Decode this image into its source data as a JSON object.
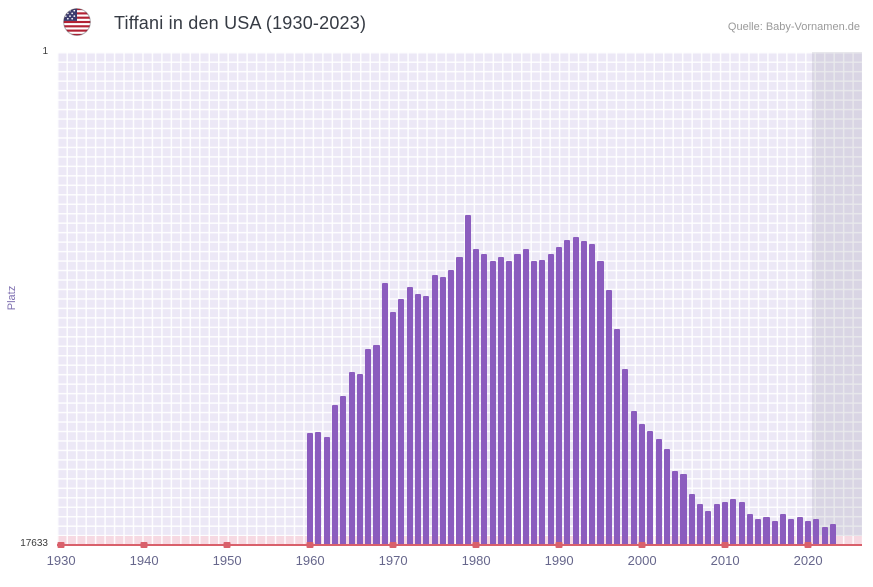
{
  "header": {
    "flag_icon": "us-flag",
    "title": "Tiffani in den USA (1930-2023)",
    "source": "Quelle: Baby-Vornamen.de"
  },
  "axes": {
    "y_label": "Platz",
    "y_top_tick": "1",
    "y_bottom_tick": "17633",
    "x_ticks": [
      1930,
      1940,
      1950,
      1960,
      1970,
      1980,
      1990,
      2000,
      2010,
      2020
    ]
  },
  "chart_data": {
    "type": "bar",
    "title": "Tiffani in den USA (1930-2023)",
    "xlabel": "",
    "ylabel": "Platz",
    "x_range": [
      1930,
      2026
    ],
    "y_axis": {
      "top_rank": 1,
      "bottom_rank": 17633,
      "inverted": true
    },
    "recent_band_start_year": 2021,
    "series": [
      {
        "name": "Tiffani",
        "years": [
          1960,
          1961,
          1962,
          1963,
          1964,
          1965,
          1966,
          1967,
          1968,
          1969,
          1970,
          1971,
          1972,
          1973,
          1974,
          1975,
          1976,
          1977,
          1978,
          1979,
          1980,
          1981,
          1982,
          1983,
          1984,
          1985,
          1986,
          1987,
          1988,
          1989,
          1990,
          1991,
          1992,
          1993,
          1994,
          1995,
          1996,
          1997,
          1998,
          1999,
          2000,
          2001,
          2002,
          2003,
          2004,
          2005,
          2006,
          2007,
          2008,
          2009,
          2010,
          2011,
          2012,
          2013,
          2014,
          2015,
          2016,
          2017,
          2018,
          2019,
          2020,
          2021,
          2022,
          2023
        ],
        "ranks": [
          13627,
          13591,
          13770,
          12626,
          12304,
          11446,
          11517,
          10623,
          10480,
          8263,
          9300,
          8835,
          8406,
          8656,
          8728,
          7977,
          8048,
          7798,
          7333,
          5831,
          7047,
          7226,
          7476,
          7333,
          7476,
          7226,
          7047,
          7476,
          7440,
          7226,
          6975,
          6725,
          6617,
          6760,
          6868,
          7476,
          8513,
          9908,
          11338,
          12841,
          13306,
          13556,
          13842,
          14200,
          14987,
          15094,
          15809,
          16167,
          16417,
          16167,
          16096,
          15988,
          16096,
          16525,
          16703,
          16632,
          16775,
          16525,
          16703,
          16632,
          16775,
          16703,
          16989,
          16882
        ]
      }
    ],
    "colors": {
      "bar": "#8b5cbe",
      "baseline": "#d9606b",
      "decade_tick": "#d9606b",
      "plot_background": "#ece8f6",
      "unranked_band": "#f6d9e2",
      "recent_band": "rgba(120,120,138,0.16)",
      "x_label_color": "#67678c"
    }
  }
}
